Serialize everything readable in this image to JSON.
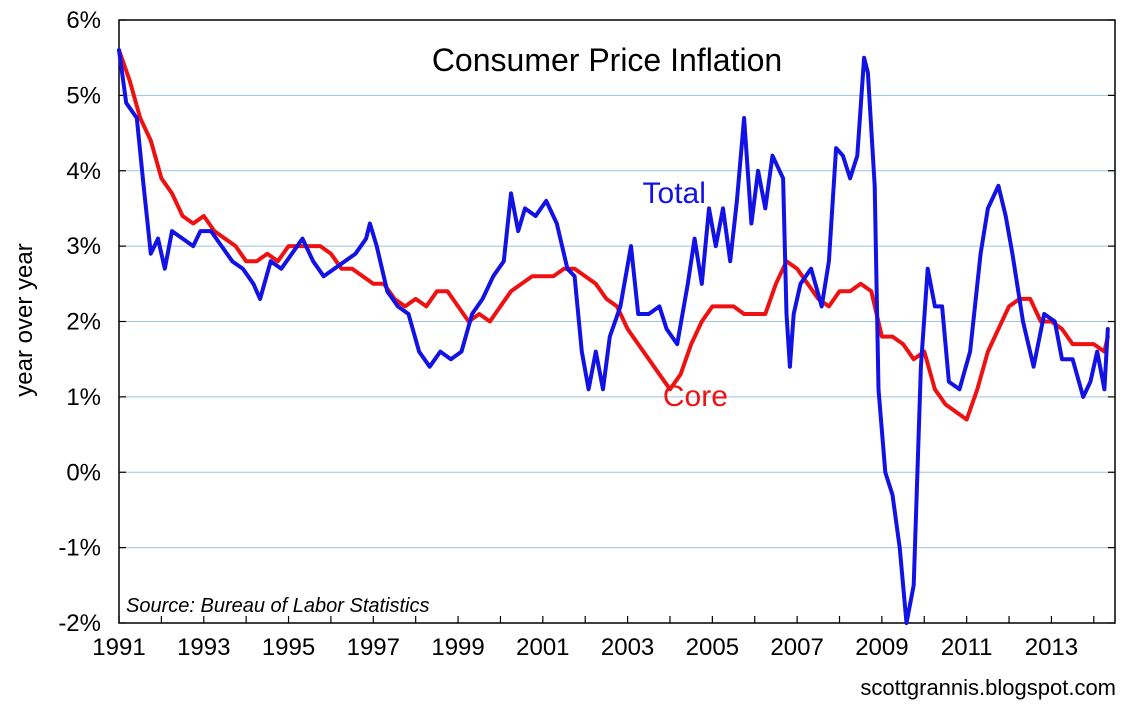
{
  "chart_data": {
    "type": "line",
    "title": "Consumer Price Inflation",
    "ylabel": "year over year",
    "xlabel": "",
    "xlim": [
      1991,
      2014.5
    ],
    "ylim": [
      -2,
      6
    ],
    "y_ticks": [
      -2,
      -1,
      0,
      1,
      2,
      3,
      4,
      5,
      6
    ],
    "y_tick_labels": [
      "-2%",
      "-1%",
      "0%",
      "1%",
      "2%",
      "3%",
      "4%",
      "5%",
      "6%"
    ],
    "x_ticks": [
      1991,
      1993,
      1995,
      1997,
      1999,
      2001,
      2003,
      2005,
      2007,
      2009,
      2011,
      2013
    ],
    "x_tick_labels": [
      "1991",
      "1993",
      "1995",
      "1997",
      "1999",
      "2001",
      "2003",
      "2005",
      "2007",
      "2009",
      "2011",
      "2013"
    ],
    "grid": "horizontal",
    "source": "Source: Bureau of Labor Statistics",
    "credit": "scottgrannis.blogspot.com",
    "series": [
      {
        "name": "Total",
        "color": "#1212e6",
        "points": [
          [
            1991.0,
            5.6
          ],
          [
            1991.17,
            4.9
          ],
          [
            1991.42,
            4.7
          ],
          [
            1991.58,
            3.8
          ],
          [
            1991.75,
            2.9
          ],
          [
            1991.92,
            3.1
          ],
          [
            1992.08,
            2.7
          ],
          [
            1992.25,
            3.2
          ],
          [
            1992.5,
            3.1
          ],
          [
            1992.75,
            3.0
          ],
          [
            1992.92,
            3.2
          ],
          [
            1993.17,
            3.2
          ],
          [
            1993.42,
            3.0
          ],
          [
            1993.67,
            2.8
          ],
          [
            1993.92,
            2.7
          ],
          [
            1994.17,
            2.5
          ],
          [
            1994.33,
            2.3
          ],
          [
            1994.58,
            2.8
          ],
          [
            1994.83,
            2.7
          ],
          [
            1995.08,
            2.9
          ],
          [
            1995.33,
            3.1
          ],
          [
            1995.58,
            2.8
          ],
          [
            1995.83,
            2.6
          ],
          [
            1996.08,
            2.7
          ],
          [
            1996.33,
            2.8
          ],
          [
            1996.58,
            2.9
          ],
          [
            1996.83,
            3.1
          ],
          [
            1996.92,
            3.3
          ],
          [
            1997.08,
            3.0
          ],
          [
            1997.33,
            2.4
          ],
          [
            1997.58,
            2.2
          ],
          [
            1997.83,
            2.1
          ],
          [
            1998.08,
            1.6
          ],
          [
            1998.33,
            1.4
          ],
          [
            1998.58,
            1.6
          ],
          [
            1998.83,
            1.5
          ],
          [
            1999.08,
            1.6
          ],
          [
            1999.33,
            2.1
          ],
          [
            1999.58,
            2.3
          ],
          [
            1999.83,
            2.6
          ],
          [
            2000.08,
            2.8
          ],
          [
            2000.25,
            3.7
          ],
          [
            2000.42,
            3.2
          ],
          [
            2000.58,
            3.5
          ],
          [
            2000.83,
            3.4
          ],
          [
            2001.08,
            3.6
          ],
          [
            2001.33,
            3.3
          ],
          [
            2001.58,
            2.7
          ],
          [
            2001.75,
            2.6
          ],
          [
            2001.92,
            1.6
          ],
          [
            2002.08,
            1.1
          ],
          [
            2002.25,
            1.6
          ],
          [
            2002.42,
            1.1
          ],
          [
            2002.58,
            1.8
          ],
          [
            2002.83,
            2.2
          ],
          [
            2003.08,
            3.0
          ],
          [
            2003.25,
            2.1
          ],
          [
            2003.5,
            2.1
          ],
          [
            2003.75,
            2.2
          ],
          [
            2003.92,
            1.9
          ],
          [
            2004.17,
            1.7
          ],
          [
            2004.42,
            2.5
          ],
          [
            2004.58,
            3.1
          ],
          [
            2004.75,
            2.5
          ],
          [
            2004.92,
            3.5
          ],
          [
            2005.08,
            3.0
          ],
          [
            2005.25,
            3.5
          ],
          [
            2005.42,
            2.8
          ],
          [
            2005.58,
            3.6
          ],
          [
            2005.75,
            4.7
          ],
          [
            2005.92,
            3.3
          ],
          [
            2006.08,
            4.0
          ],
          [
            2006.25,
            3.5
          ],
          [
            2006.42,
            4.2
          ],
          [
            2006.67,
            3.9
          ],
          [
            2006.75,
            2.1
          ],
          [
            2006.83,
            1.4
          ],
          [
            2006.92,
            2.1
          ],
          [
            2007.08,
            2.5
          ],
          [
            2007.33,
            2.7
          ],
          [
            2007.58,
            2.2
          ],
          [
            2007.75,
            2.8
          ],
          [
            2007.92,
            4.3
          ],
          [
            2008.08,
            4.2
          ],
          [
            2008.25,
            3.9
          ],
          [
            2008.42,
            4.2
          ],
          [
            2008.58,
            5.5
          ],
          [
            2008.67,
            5.3
          ],
          [
            2008.83,
            3.8
          ],
          [
            2008.92,
            1.1
          ],
          [
            2009.08,
            0.0
          ],
          [
            2009.25,
            -0.3
          ],
          [
            2009.42,
            -1.0
          ],
          [
            2009.58,
            -2.0
          ],
          [
            2009.75,
            -1.5
          ],
          [
            2009.92,
            1.4
          ],
          [
            2010.08,
            2.7
          ],
          [
            2010.25,
            2.2
          ],
          [
            2010.42,
            2.2
          ],
          [
            2010.58,
            1.2
          ],
          [
            2010.83,
            1.1
          ],
          [
            2011.08,
            1.6
          ],
          [
            2011.33,
            2.9
          ],
          [
            2011.5,
            3.5
          ],
          [
            2011.75,
            3.8
          ],
          [
            2011.92,
            3.4
          ],
          [
            2012.08,
            2.9
          ],
          [
            2012.33,
            2.0
          ],
          [
            2012.58,
            1.4
          ],
          [
            2012.83,
            2.1
          ],
          [
            2013.08,
            2.0
          ],
          [
            2013.25,
            1.5
          ],
          [
            2013.5,
            1.5
          ],
          [
            2013.75,
            1.0
          ],
          [
            2013.92,
            1.2
          ],
          [
            2014.08,
            1.6
          ],
          [
            2014.25,
            1.1
          ],
          [
            2014.33,
            1.9
          ]
        ]
      },
      {
        "name": "Core",
        "color": "#ee1111",
        "points": [
          [
            1991.0,
            5.6
          ],
          [
            1991.25,
            5.2
          ],
          [
            1991.5,
            4.7
          ],
          [
            1991.75,
            4.4
          ],
          [
            1992.0,
            3.9
          ],
          [
            1992.25,
            3.7
          ],
          [
            1992.5,
            3.4
          ],
          [
            1992.75,
            3.3
          ],
          [
            1993.0,
            3.4
          ],
          [
            1993.25,
            3.2
          ],
          [
            1993.5,
            3.1
          ],
          [
            1993.75,
            3.0
          ],
          [
            1994.0,
            2.8
          ],
          [
            1994.25,
            2.8
          ],
          [
            1994.5,
            2.9
          ],
          [
            1994.75,
            2.8
          ],
          [
            1995.0,
            3.0
          ],
          [
            1995.25,
            3.0
          ],
          [
            1995.5,
            3.0
          ],
          [
            1995.75,
            3.0
          ],
          [
            1996.0,
            2.9
          ],
          [
            1996.25,
            2.7
          ],
          [
            1996.5,
            2.7
          ],
          [
            1996.75,
            2.6
          ],
          [
            1997.0,
            2.5
          ],
          [
            1997.25,
            2.5
          ],
          [
            1997.5,
            2.3
          ],
          [
            1997.75,
            2.2
          ],
          [
            1998.0,
            2.3
          ],
          [
            1998.25,
            2.2
          ],
          [
            1998.5,
            2.4
          ],
          [
            1998.75,
            2.4
          ],
          [
            1999.0,
            2.2
          ],
          [
            1999.25,
            2.0
          ],
          [
            1999.5,
            2.1
          ],
          [
            1999.75,
            2.0
          ],
          [
            2000.0,
            2.2
          ],
          [
            2000.25,
            2.4
          ],
          [
            2000.5,
            2.5
          ],
          [
            2000.75,
            2.6
          ],
          [
            2001.0,
            2.6
          ],
          [
            2001.25,
            2.6
          ],
          [
            2001.5,
            2.7
          ],
          [
            2001.75,
            2.7
          ],
          [
            2002.0,
            2.6
          ],
          [
            2002.25,
            2.5
          ],
          [
            2002.5,
            2.3
          ],
          [
            2002.75,
            2.2
          ],
          [
            2003.0,
            1.9
          ],
          [
            2003.25,
            1.7
          ],
          [
            2003.5,
            1.5
          ],
          [
            2003.75,
            1.3
          ],
          [
            2004.0,
            1.1
          ],
          [
            2004.25,
            1.3
          ],
          [
            2004.5,
            1.7
          ],
          [
            2004.75,
            2.0
          ],
          [
            2005.0,
            2.2
          ],
          [
            2005.25,
            2.2
          ],
          [
            2005.5,
            2.2
          ],
          [
            2005.75,
            2.1
          ],
          [
            2006.0,
            2.1
          ],
          [
            2006.25,
            2.1
          ],
          [
            2006.5,
            2.5
          ],
          [
            2006.75,
            2.8
          ],
          [
            2007.0,
            2.7
          ],
          [
            2007.25,
            2.5
          ],
          [
            2007.5,
            2.3
          ],
          [
            2007.75,
            2.2
          ],
          [
            2008.0,
            2.4
          ],
          [
            2008.25,
            2.4
          ],
          [
            2008.5,
            2.5
          ],
          [
            2008.75,
            2.4
          ],
          [
            2009.0,
            1.8
          ],
          [
            2009.25,
            1.8
          ],
          [
            2009.5,
            1.7
          ],
          [
            2009.75,
            1.5
          ],
          [
            2010.0,
            1.6
          ],
          [
            2010.25,
            1.1
          ],
          [
            2010.5,
            0.9
          ],
          [
            2010.75,
            0.8
          ],
          [
            2011.0,
            0.7
          ],
          [
            2011.25,
            1.1
          ],
          [
            2011.5,
            1.6
          ],
          [
            2011.75,
            1.9
          ],
          [
            2012.0,
            2.2
          ],
          [
            2012.25,
            2.3
          ],
          [
            2012.5,
            2.3
          ],
          [
            2012.75,
            2.0
          ],
          [
            2013.0,
            2.0
          ],
          [
            2013.25,
            1.9
          ],
          [
            2013.5,
            1.7
          ],
          [
            2013.75,
            1.7
          ],
          [
            2014.0,
            1.7
          ],
          [
            2014.25,
            1.6
          ],
          [
            2014.33,
            1.8
          ]
        ]
      }
    ],
    "annotations": [
      {
        "text": "Total",
        "series": "Total",
        "x": 2004.1,
        "y": 3.57
      },
      {
        "text": "Core",
        "series": "Core",
        "x": 2004.6,
        "y": 0.88
      }
    ]
  }
}
